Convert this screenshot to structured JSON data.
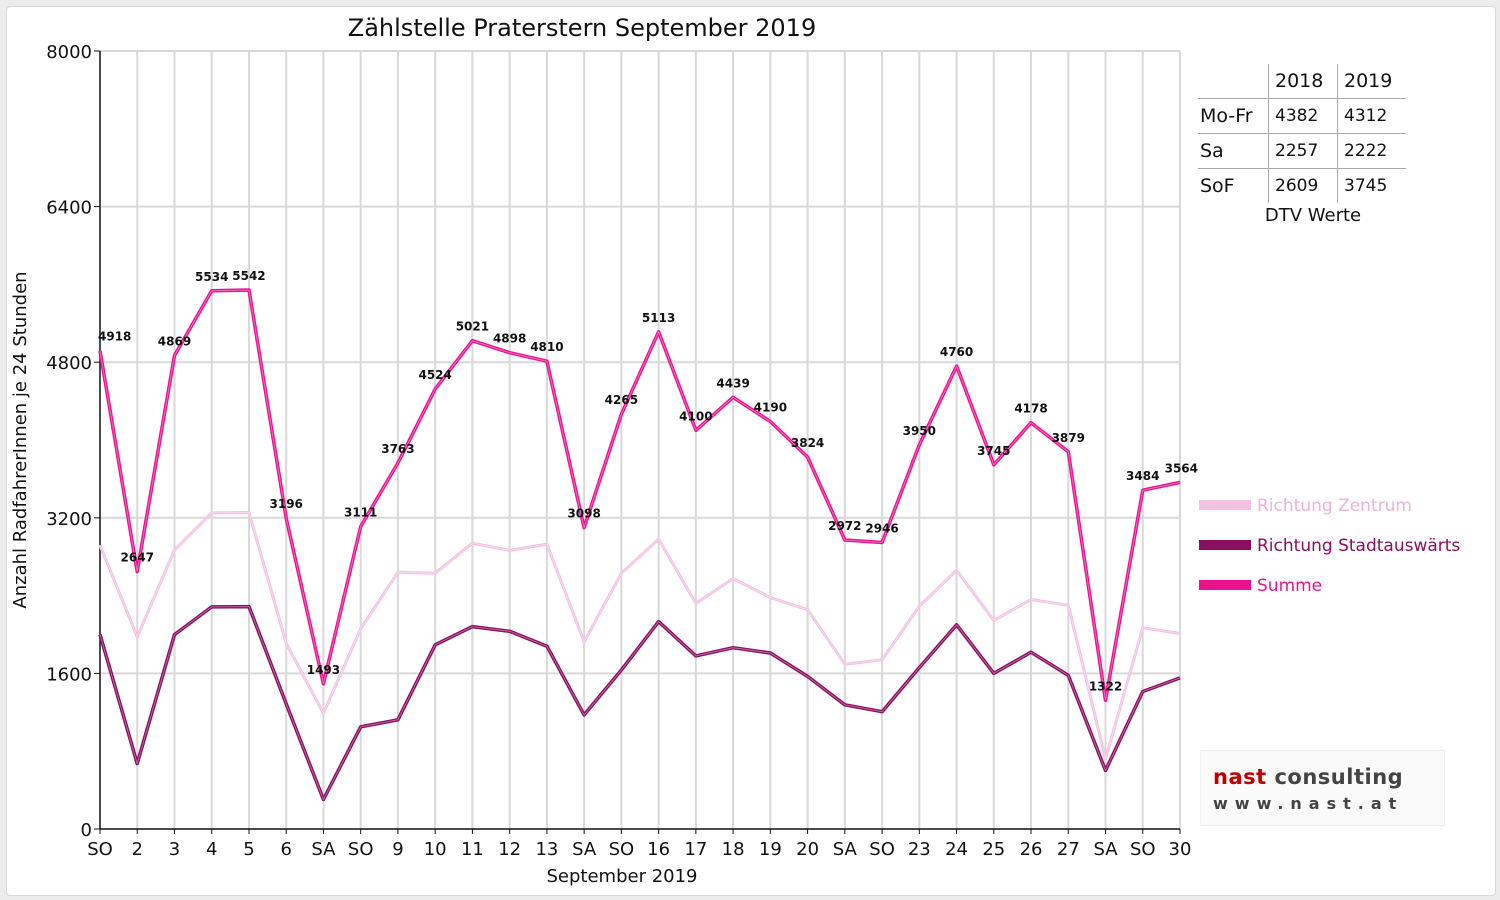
{
  "chart_data": {
    "type": "line",
    "title": "Zählstelle Praterstern September 2019",
    "xlabel": "September 2019",
    "ylabel": "Anzahl RadfahrerInnen je 24 Stunden",
    "ylim": [
      0,
      8000
    ],
    "yticks": [
      0,
      1600,
      3200,
      4800,
      6400,
      8000
    ],
    "grid": true,
    "legend_position": "right",
    "categories": [
      "SO",
      "2",
      "3",
      "4",
      "5",
      "6",
      "SA",
      "SO",
      "9",
      "10",
      "11",
      "12",
      "13",
      "SA",
      "SO",
      "16",
      "17",
      "18",
      "19",
      "20",
      "SA",
      "SO",
      "23",
      "24",
      "25",
      "26",
      "27",
      "SA",
      "SO",
      "30"
    ],
    "highlight_categories": [
      "SO"
    ],
    "highlight_color": "#ff0000",
    "series": [
      {
        "name": "Richtung Zentrum",
        "color": "#f3c2e2",
        "values": [
          2918,
          1975,
          2870,
          3250,
          3255,
          1910,
          1190,
          2060,
          2640,
          2630,
          2940,
          2865,
          2930,
          1925,
          2630,
          2980,
          2320,
          2575,
          2380,
          2255,
          1695,
          1740,
          2290,
          2660,
          2145,
          2360,
          2300,
          720,
          2070,
          2010
        ]
      },
      {
        "name": "Richtung Stadtauswärts",
        "color": "#8b0e60",
        "values": [
          2000,
          672,
          1999,
          2284,
          2287,
          1286,
          303,
          1051,
          1123,
          1894,
          2081,
          2033,
          1880,
          1173,
          1635,
          2133,
          1780,
          1864,
          1810,
          1569,
          1277,
          1206,
          1660,
          2100,
          1600,
          1818,
          1579,
          602,
          1414,
          1554
        ]
      },
      {
        "name": "Summe",
        "color": "#e8138f",
        "values": [
          4918,
          2647,
          4869,
          5534,
          5542,
          3196,
          1493,
          3111,
          3763,
          4524,
          5021,
          4898,
          4810,
          3098,
          4265,
          5113,
          4100,
          4439,
          4190,
          3824,
          2972,
          2946,
          3950,
          4760,
          3745,
          4178,
          3879,
          1322,
          3484,
          3564
        ]
      }
    ],
    "data_labels": [
      "4918",
      "2647",
      "4869",
      "5534",
      "5542",
      "3196",
      "1493",
      "3111",
      "3763",
      "4524",
      "5021",
      "4898",
      "4810",
      "3098",
      "4265",
      "5113",
      "4100",
      "4439",
      "4190",
      "3824",
      "2972",
      "2946",
      "3950",
      "4760",
      "3745",
      "4178",
      "3879",
      "1322",
      "3484",
      "3564"
    ]
  },
  "dtv_table": {
    "headers": [
      "",
      "2018",
      "2019"
    ],
    "rows": [
      {
        "label": "Mo-Fr",
        "v2018": "4382",
        "v2019": "4312"
      },
      {
        "label": "Sa",
        "v2018": "2257",
        "v2019": "2222"
      },
      {
        "label": "SoF",
        "v2018": "2609",
        "v2019": "3745"
      }
    ],
    "caption": "DTV Werte"
  },
  "logo": {
    "brand_a": "nast",
    "brand_b": "consulting",
    "url": "www.nast.at"
  }
}
